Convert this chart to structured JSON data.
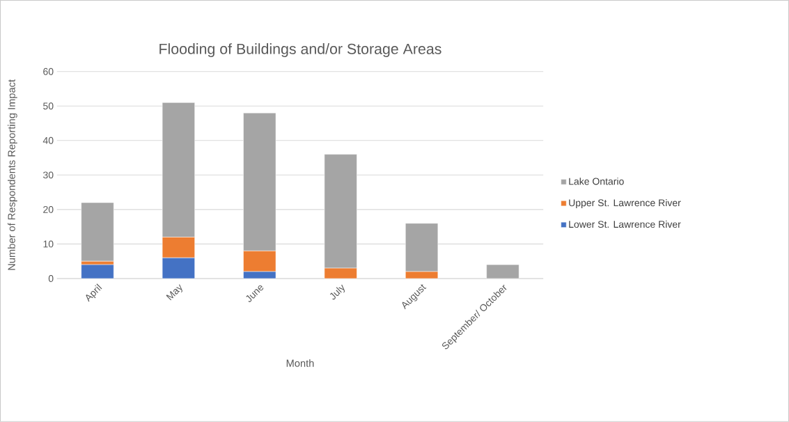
{
  "chart_data": {
    "type": "bar",
    "title": "Flooding of Buildings and/or Storage Areas",
    "xlabel": "Month",
    "ylabel": "Number of Respondents Reporting Impact",
    "categories": [
      "April",
      "May",
      "June",
      "July",
      "August",
      "September/ October"
    ],
    "stacked": true,
    "series": [
      {
        "name": "Lower St. Lawrence River",
        "color": "#4472c4",
        "values": [
          4,
          6,
          2,
          0,
          0,
          0
        ]
      },
      {
        "name": "Upper St. Lawrence River",
        "color": "#ed7d31",
        "values": [
          1,
          6,
          6,
          3,
          2,
          0
        ]
      },
      {
        "name": "Lake Ontario",
        "color": "#a5a5a5",
        "values": [
          17,
          39,
          40,
          33,
          14,
          4
        ]
      }
    ],
    "ylim": [
      0,
      60
    ],
    "yticks": [
      0,
      10,
      20,
      30,
      40,
      50,
      60
    ],
    "grid": "y",
    "legend": "right"
  }
}
